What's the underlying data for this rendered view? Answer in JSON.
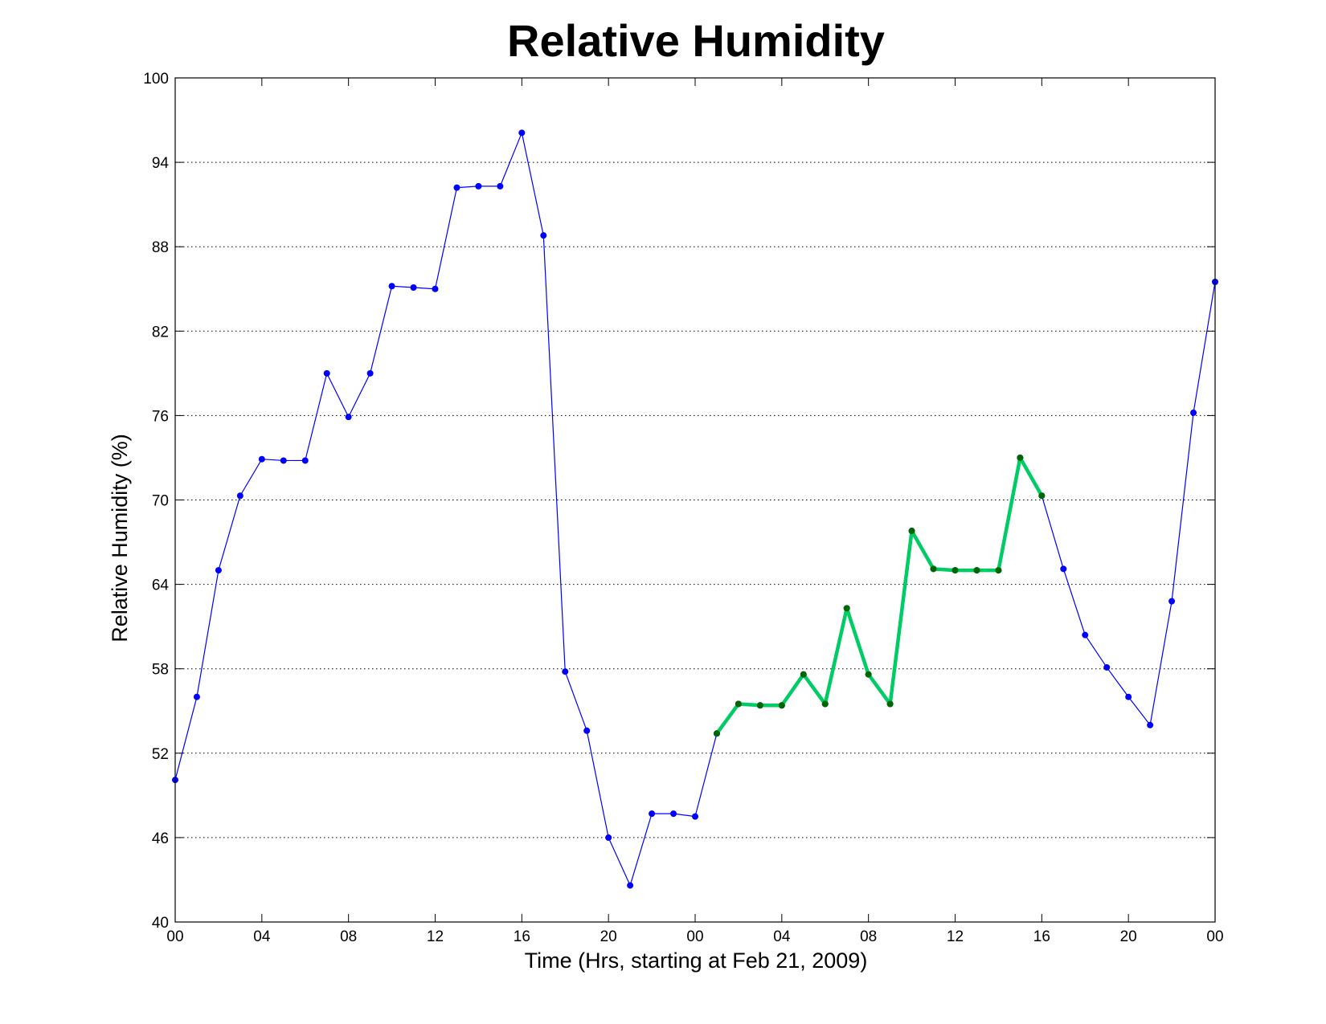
{
  "chart_data": {
    "type": "line",
    "title": "Relative Humidity",
    "xlabel": "Time (Hrs, starting at Feb 21, 2009)",
    "ylabel": "Relative Humidity (%)",
    "xlim": [
      0,
      48
    ],
    "ylim": [
      40,
      100
    ],
    "xticks": [
      0,
      4,
      8,
      12,
      16,
      20,
      24,
      28,
      32,
      36,
      40,
      44,
      48
    ],
    "xtick_labels": [
      "00",
      "04",
      "08",
      "12",
      "16",
      "20",
      "00",
      "04",
      "08",
      "12",
      "16",
      "20",
      "00"
    ],
    "yticks": [
      40,
      46,
      52,
      58,
      64,
      70,
      76,
      82,
      88,
      94,
      100
    ],
    "ytick_labels": [
      "40",
      "46",
      "52",
      "58",
      "64",
      "70",
      "76",
      "82",
      "88",
      "94",
      "100"
    ],
    "grid": "y-dotted",
    "legend": "none",
    "series": [
      {
        "color": "#0000ff",
        "marker_color": "#0000ff",
        "x": [
          0,
          1,
          2,
          3,
          4,
          5,
          6,
          7,
          8,
          9,
          10,
          11,
          12,
          13,
          14,
          15,
          16,
          17,
          18,
          19,
          20,
          21,
          22,
          23,
          24,
          25,
          26,
          27,
          28,
          29,
          30,
          31,
          32,
          33,
          34,
          35,
          36,
          37,
          38,
          39,
          40,
          41,
          42,
          43,
          44,
          45,
          46,
          47,
          48
        ],
        "y": [
          50.1,
          56.0,
          65.0,
          70.3,
          72.9,
          72.8,
          72.8,
          79.0,
          75.9,
          79.0,
          85.2,
          85.1,
          85.0,
          92.2,
          92.3,
          92.3,
          96.1,
          88.8,
          57.8,
          53.6,
          46.0,
          42.6,
          47.7,
          47.7,
          47.5,
          53.4,
          55.5,
          55.4,
          55.4,
          57.6,
          55.5,
          62.3,
          57.6,
          55.5,
          67.8,
          65.1,
          65.0,
          65.0,
          65.0,
          73.0,
          70.3,
          65.1,
          60.4,
          58.1,
          56.0,
          54.0,
          62.8,
          76.2,
          85.5
        ]
      },
      {
        "color": "#00cc66",
        "marker_color": "#006600",
        "x": [
          25,
          26,
          27,
          28,
          29,
          30,
          31,
          32,
          33,
          34,
          35,
          36,
          37,
          38,
          39,
          40
        ],
        "y": [
          53.4,
          55.5,
          55.4,
          55.4,
          57.6,
          55.5,
          62.3,
          57.6,
          55.5,
          67.8,
          65.1,
          65.0,
          65.0,
          65.0,
          73.0,
          70.3
        ]
      }
    ]
  }
}
